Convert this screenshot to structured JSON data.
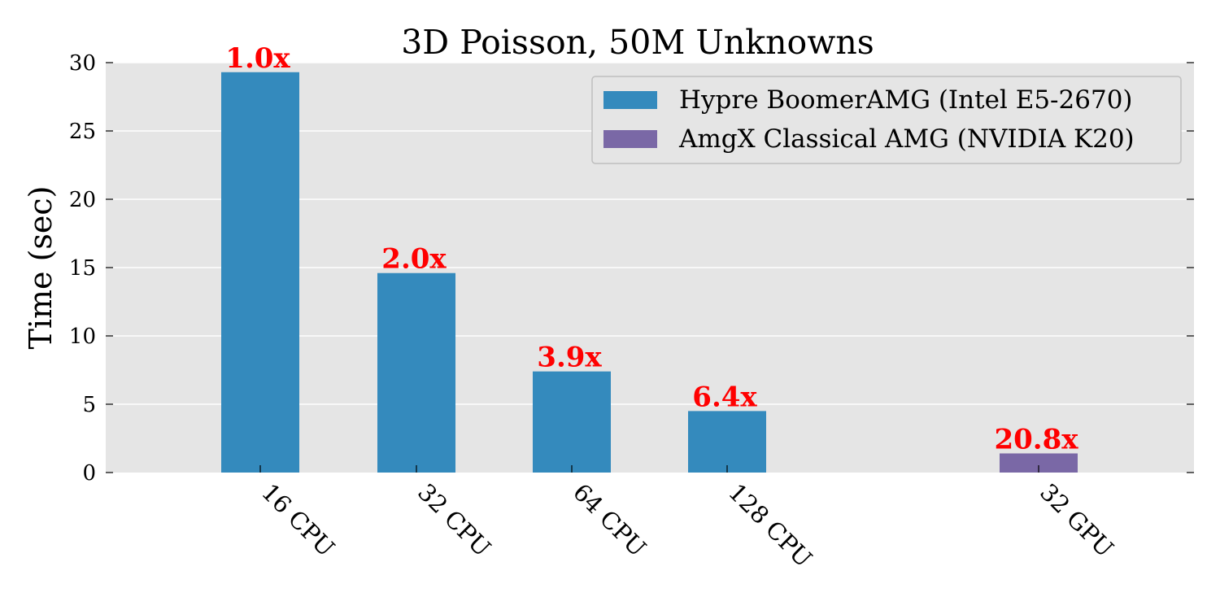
{
  "chart_data": {
    "type": "bar",
    "title": "3D Poisson, 50M Unknowns",
    "xlabel": "",
    "ylabel": "Time (sec)",
    "ylim": [
      0,
      30
    ],
    "yticks": [
      "0",
      "5",
      "10",
      "15",
      "20",
      "25",
      "30"
    ],
    "grid": true,
    "legend_position": "top-right",
    "categories": [
      "16 CPU",
      "32 CPU",
      "64 CPU",
      "128 CPU",
      "32 GPU"
    ],
    "series": [
      {
        "name": "Hypre BoomerAMG (Intel E5-2670)",
        "color": "#348abd",
        "bars": [
          {
            "category": "16 CPU",
            "value": 29.3,
            "label": "1.0x"
          },
          {
            "category": "32 CPU",
            "value": 14.6,
            "label": "2.0x"
          },
          {
            "category": "64 CPU",
            "value": 7.4,
            "label": "3.9x"
          },
          {
            "category": "128 CPU",
            "value": 4.5,
            "label": "6.4x"
          }
        ]
      },
      {
        "name": "AmgX Classical AMG (NVIDIA K20)",
        "color": "#7a68a6",
        "bars": [
          {
            "category": "32 GPU",
            "value": 1.4,
            "label": "20.8x"
          }
        ]
      }
    ],
    "annotation_color": "#ff0000",
    "background_color": "#e5e5e5"
  }
}
